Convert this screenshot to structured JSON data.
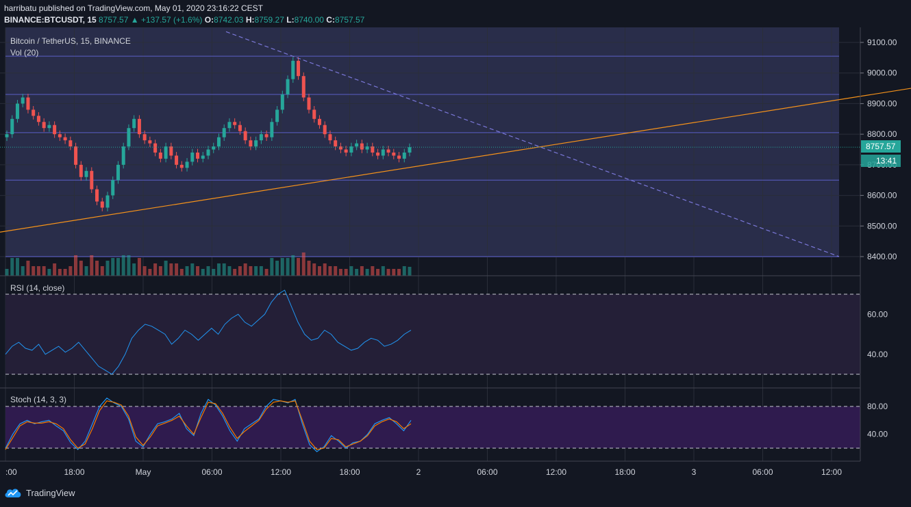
{
  "header": {
    "line1": "harribatu published on TradingView.com, May 01, 2020 23:16:22 CEST",
    "symbol": "BINANCE:BTCUSDT, 15",
    "last": "8757.57",
    "change": "+137.57 (+1.6%)",
    "o_label": "O:",
    "o": "8742.03",
    "h_label": "H:",
    "h": "8759.27",
    "l_label": "L:",
    "l": "8740.00",
    "c_label": "C:",
    "c": "8757.57"
  },
  "panes": {
    "main_title": "Bitcoin / TetherUS, 15, BINANCE",
    "vol_title": "Vol (20)",
    "rsi_title": "RSI (14, close)",
    "stoch_title": "Stoch (14, 3, 3)"
  },
  "price_tag": "8757.57",
  "time_tag": "13:41",
  "branding": "TradingView",
  "colors": {
    "up": "#26a69a",
    "down": "#ef5350",
    "trend": "#f7931a",
    "hline": "#5b5fc7",
    "rsi": "#2196f3",
    "stoch_d": "#f57c00"
  },
  "chart_data": [
    {
      "type": "candlestick",
      "title": "Bitcoin / TetherUS, 15, BINANCE",
      "y_ticks": [
        "9100.00",
        "9000.00",
        "8900.00",
        "8800.00",
        "8700.00",
        "8600.00",
        "8500.00",
        "8400.00"
      ],
      "ylim": [
        8340,
        9140
      ],
      "x_ticks": [
        ":00",
        "18:00",
        "May",
        "06:00",
        "12:00",
        "18:00",
        "2",
        "06:00",
        "12:00",
        "18:00",
        "3",
        "06:00",
        "12:00"
      ],
      "horizontal_levels": [
        9055,
        8930,
        8805,
        8650,
        8400
      ],
      "last_price": 8757.57,
      "trendline_support": [
        [
          0,
          8480
        ],
        [
          1330,
          8950
        ]
      ],
      "trendline_resistance_dashed": [
        [
          330,
          9135
        ],
        [
          1225,
          8400
        ]
      ],
      "close_series": [
        8800,
        8850,
        8900,
        8920,
        8880,
        8860,
        8840,
        8820,
        8830,
        8800,
        8790,
        8780,
        8760,
        8700,
        8660,
        8680,
        8620,
        8580,
        8560,
        8600,
        8650,
        8700,
        8760,
        8820,
        8850,
        8800,
        8780,
        8770,
        8740,
        8720,
        8760,
        8730,
        8700,
        8690,
        8710,
        8740,
        8720,
        8730,
        8750,
        8760,
        8790,
        8820,
        8840,
        8830,
        8810,
        8780,
        8760,
        8780,
        8800,
        8790,
        8840,
        8880,
        8930,
        8980,
        9040,
        8990,
        8920,
        8880,
        8850,
        8830,
        8800,
        8780,
        8760,
        8750,
        8740,
        8760,
        8770,
        8750,
        8760,
        8740,
        8730,
        8750,
        8740,
        8730,
        8720,
        8740,
        8757.57
      ]
    },
    {
      "type": "line",
      "title": "RSI (14, close)",
      "y_ticks": [
        "60.00",
        "40.00"
      ],
      "ylim": [
        25,
        76
      ],
      "bands": [
        70,
        30
      ],
      "values": [
        40,
        44,
        46,
        43,
        42,
        45,
        40,
        42,
        44,
        41,
        43,
        46,
        42,
        38,
        34,
        32,
        30,
        34,
        40,
        48,
        52,
        55,
        54,
        52,
        50,
        45,
        48,
        52,
        50,
        47,
        50,
        53,
        50,
        55,
        58,
        60,
        56,
        54,
        57,
        60,
        66,
        70,
        72,
        64,
        56,
        50,
        47,
        48,
        52,
        50,
        46,
        44,
        42,
        43,
        46,
        48,
        47,
        44,
        45,
        47,
        50,
        52
      ]
    },
    {
      "type": "line",
      "title": "Stoch (14, 3, 3)",
      "y_ticks": [
        "80.00",
        "40.00"
      ],
      "ylim": [
        10,
        95
      ],
      "bands": [
        80,
        20
      ],
      "series": [
        {
          "values": [
            20,
            40,
            55,
            60,
            55,
            58,
            60,
            52,
            45,
            28,
            18,
            30,
            55,
            80,
            92,
            85,
            80,
            62,
            30,
            22,
            40,
            55,
            58,
            62,
            70,
            48,
            38,
            70,
            90,
            82,
            66,
            45,
            30,
            48,
            55,
            62,
            80,
            90,
            88,
            85,
            90,
            55,
            25,
            15,
            22,
            38,
            30,
            20,
            28,
            30,
            40,
            55,
            60,
            64,
            55,
            45,
            60
          ]
        },
        {
          "values": [
            18,
            35,
            52,
            58,
            56,
            56,
            58,
            55,
            48,
            32,
            20,
            26,
            48,
            74,
            88,
            86,
            82,
            66,
            36,
            24,
            36,
            52,
            56,
            60,
            66,
            52,
            40,
            64,
            86,
            84,
            70,
            50,
            34,
            44,
            52,
            60,
            76,
            86,
            88,
            86,
            88,
            60,
            30,
            18,
            20,
            34,
            32,
            22,
            26,
            30,
            38,
            52,
            58,
            62,
            58,
            48,
            55
          ]
        }
      ]
    }
  ]
}
